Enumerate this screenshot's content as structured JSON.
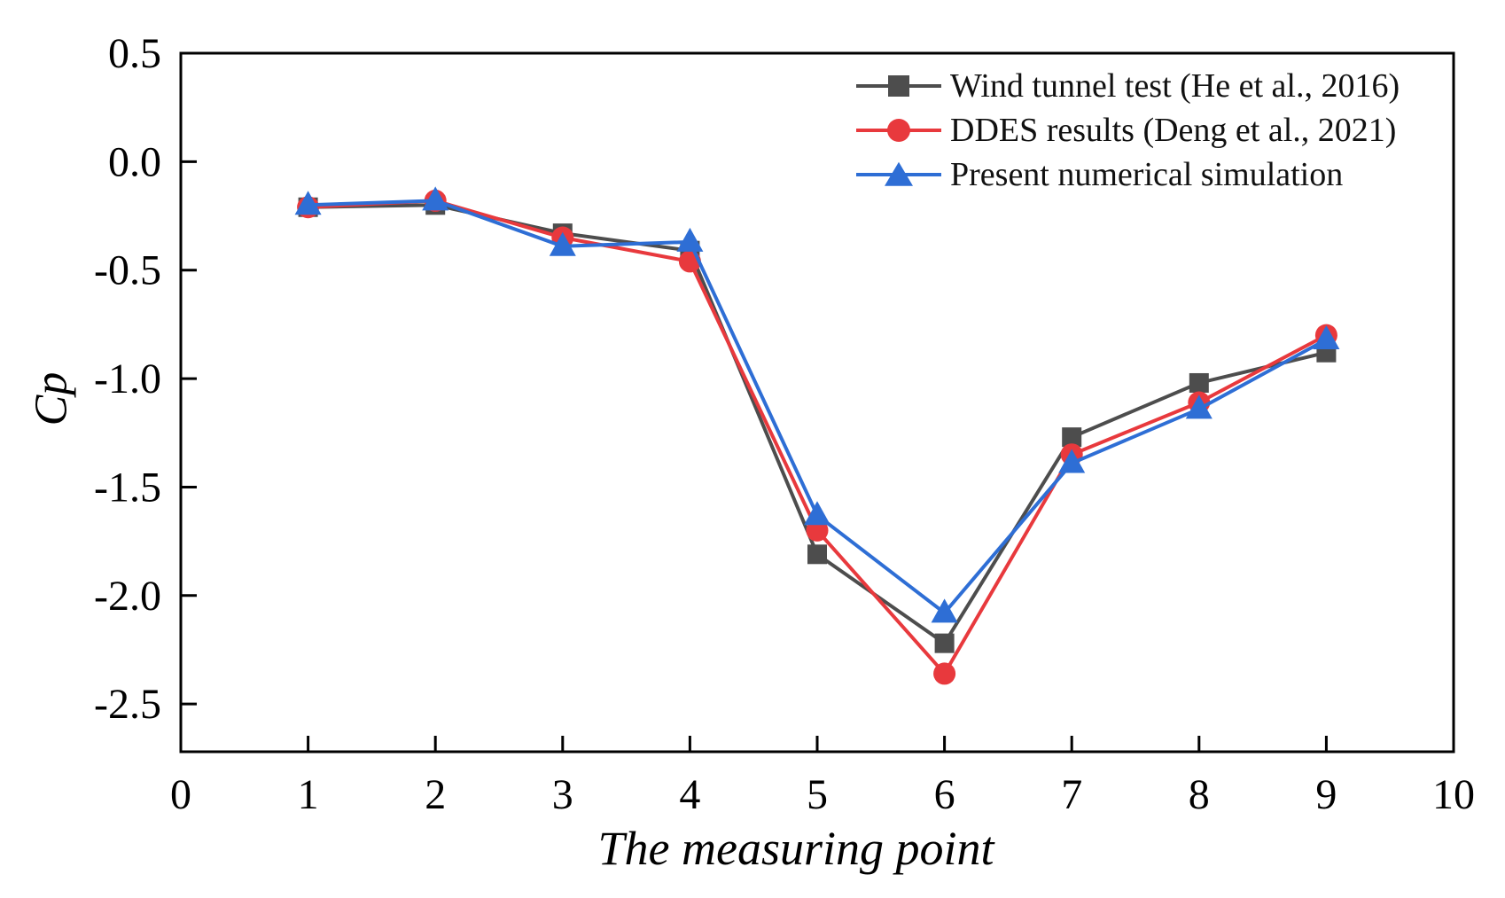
{
  "figure": {
    "background": "#ffffff"
  },
  "chart_data": {
    "type": "line",
    "title": "",
    "xlabel": "The measuring point",
    "ylabel": "Cp",
    "xlim": [
      0,
      10
    ],
    "ylim": [
      -2.72,
      0.5
    ],
    "x_ticks": [
      0,
      1,
      2,
      3,
      4,
      5,
      6,
      7,
      8,
      9,
      10
    ],
    "x_tick_labels": [
      "0",
      "1",
      "2",
      "3",
      "4",
      "5",
      "6",
      "7",
      "8",
      "9",
      "10"
    ],
    "y_ticks": [
      0.5,
      0.0,
      -0.5,
      -1.0,
      -1.5,
      -2.0,
      -2.5
    ],
    "y_tick_labels": [
      "0.5",
      "0.0",
      "-0.5",
      "-1.0",
      "-1.5",
      "-2.0",
      "-2.5"
    ],
    "grid": false,
    "legend_position": "top-right",
    "axis_color": "#000000",
    "x": [
      1,
      2,
      3,
      4,
      5,
      6,
      7,
      8,
      9
    ],
    "series": [
      {
        "name": "Wind tunnel test (He et al., 2016)",
        "marker": "square",
        "color": "#4d4d4d",
        "values": [
          -0.21,
          -0.2,
          -0.33,
          -0.41,
          -1.81,
          -2.22,
          -1.27,
          -1.02,
          -0.88
        ]
      },
      {
        "name": "DDES results (Deng et al., 2021)",
        "marker": "circle",
        "color": "#e8393d",
        "values": [
          -0.21,
          -0.18,
          -0.35,
          -0.46,
          -1.7,
          -2.36,
          -1.35,
          -1.11,
          -0.8
        ]
      },
      {
        "name": "Present numerical simulation",
        "marker": "triangle",
        "color": "#2e6ed5",
        "values": [
          -0.2,
          -0.18,
          -0.39,
          -0.37,
          -1.63,
          -2.08,
          -1.39,
          -1.14,
          -0.82
        ]
      }
    ]
  }
}
